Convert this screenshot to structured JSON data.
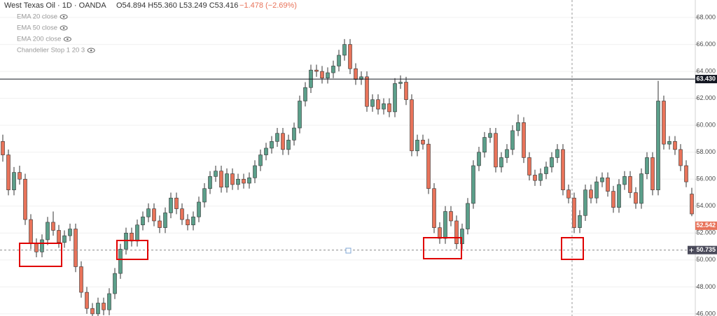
{
  "chart_data": {
    "type": "candlestick",
    "symbol": "West Texas Oil · 1D · OANDA",
    "ohlc_readout": "O54.894 H55.360 L53.249 C53.416",
    "change": "−1.478 (−2.69%)",
    "indicators": [
      "EMA 20 close",
      "EMA 50 close",
      "EMA 200 close",
      "Chandelier Stop 1 20 3"
    ],
    "up_color": "#5b9f8a",
    "down_color": "#e8735a",
    "ylim": [
      45.84,
      69.3
    ],
    "yticks": [
      {
        "value": 46,
        "label": "46.000"
      },
      {
        "value": 48,
        "label": "48.000"
      },
      {
        "value": 50,
        "label": "50.000"
      },
      {
        "value": 52,
        "label": "52.000"
      },
      {
        "value": 54,
        "label": "54.000"
      },
      {
        "value": 56,
        "label": "56.000"
      },
      {
        "value": 58,
        "label": "58.000"
      },
      {
        "value": 60,
        "label": "60.000"
      },
      {
        "value": 62,
        "label": "62.000"
      },
      {
        "value": 64,
        "label": "64.000"
      },
      {
        "value": 66,
        "label": "66.000"
      },
      {
        "value": 68,
        "label": "68.000"
      }
    ],
    "grid": true,
    "price_labels": [
      {
        "value": 63.43,
        "label": "63.430",
        "color": "#131722",
        "style": "solid"
      },
      {
        "value": 52.542,
        "label": "52.542",
        "color": "#e8735a",
        "style": "none"
      },
      {
        "value": 50.735,
        "label": "50.735",
        "color": "#4a4a5a",
        "style": "dashed"
      }
    ],
    "ohlc": [
      [
        58.8,
        59.3,
        57.3,
        57.8
      ],
      [
        57.8,
        58.2,
        54.8,
        55.2
      ],
      [
        55.2,
        56.9,
        54.8,
        56.5
      ],
      [
        56.5,
        57.0,
        55.6,
        56.0
      ],
      [
        56.0,
        56.4,
        52.6,
        53.0
      ],
      [
        53.0,
        53.4,
        50.8,
        51.2
      ],
      [
        51.2,
        51.6,
        50.2,
        50.6
      ],
      [
        50.6,
        51.9,
        50.2,
        51.5
      ],
      [
        51.5,
        53.2,
        51.1,
        52.8
      ],
      [
        52.8,
        53.6,
        51.8,
        52.2
      ],
      [
        52.2,
        52.6,
        50.9,
        51.3
      ],
      [
        51.3,
        52.2,
        50.9,
        51.8
      ],
      [
        51.8,
        52.7,
        51.4,
        52.3
      ],
      [
        52.3,
        52.7,
        49.1,
        49.5
      ],
      [
        49.5,
        49.9,
        47.2,
        47.6
      ],
      [
        47.6,
        48.0,
        46.0,
        46.4
      ],
      [
        46.4,
        46.8,
        45.6,
        46.0
      ],
      [
        46.0,
        47.2,
        45.6,
        46.8
      ],
      [
        46.8,
        47.2,
        45.9,
        46.3
      ],
      [
        46.3,
        47.9,
        45.9,
        47.5
      ],
      [
        47.5,
        49.4,
        47.1,
        49.0
      ],
      [
        49.0,
        51.2,
        48.6,
        50.8
      ],
      [
        50.8,
        52.4,
        50.4,
        52.0
      ],
      [
        52.0,
        52.4,
        51.0,
        51.4
      ],
      [
        51.4,
        53.0,
        51.0,
        52.6
      ],
      [
        52.6,
        53.6,
        52.2,
        53.2
      ],
      [
        53.2,
        54.2,
        52.8,
        53.8
      ],
      [
        53.8,
        54.2,
        52.5,
        52.9
      ],
      [
        52.9,
        53.3,
        52.0,
        52.4
      ],
      [
        52.4,
        53.9,
        52.0,
        53.5
      ],
      [
        53.5,
        55.0,
        53.1,
        54.6
      ],
      [
        54.6,
        55.0,
        53.4,
        53.8
      ],
      [
        53.8,
        54.2,
        52.6,
        53.0
      ],
      [
        53.0,
        53.4,
        52.2,
        52.6
      ],
      [
        52.6,
        53.6,
        52.2,
        53.2
      ],
      [
        53.2,
        54.7,
        52.8,
        54.3
      ],
      [
        54.3,
        55.7,
        53.9,
        55.3
      ],
      [
        55.3,
        56.6,
        54.9,
        56.2
      ],
      [
        56.2,
        57.0,
        55.8,
        56.6
      ],
      [
        56.6,
        57.0,
        55.0,
        55.4
      ],
      [
        55.4,
        56.8,
        55.0,
        56.4
      ],
      [
        56.4,
        56.8,
        55.2,
        55.6
      ],
      [
        55.6,
        56.4,
        55.2,
        56.0
      ],
      [
        56.0,
        56.4,
        55.3,
        55.7
      ],
      [
        55.7,
        56.5,
        55.3,
        56.1
      ],
      [
        56.1,
        57.4,
        55.7,
        57.0
      ],
      [
        57.0,
        58.2,
        56.6,
        57.8
      ],
      [
        57.8,
        58.7,
        57.4,
        58.3
      ],
      [
        58.3,
        59.2,
        57.9,
        58.8
      ],
      [
        58.8,
        59.8,
        58.4,
        59.4
      ],
      [
        59.4,
        59.8,
        57.8,
        58.2
      ],
      [
        58.2,
        59.3,
        57.8,
        58.9
      ],
      [
        58.9,
        60.2,
        58.5,
        59.8
      ],
      [
        59.8,
        62.2,
        59.4,
        61.8
      ],
      [
        61.8,
        63.2,
        61.4,
        62.8
      ],
      [
        62.8,
        64.5,
        62.4,
        64.1
      ],
      [
        64.1,
        64.5,
        63.6,
        64.0
      ],
      [
        64.0,
        64.4,
        63.1,
        63.5
      ],
      [
        63.5,
        64.3,
        63.1,
        63.9
      ],
      [
        63.9,
        64.8,
        63.5,
        64.4
      ],
      [
        64.4,
        65.6,
        64.0,
        65.2
      ],
      [
        65.2,
        66.4,
        64.8,
        66.0
      ],
      [
        66.0,
        66.4,
        63.8,
        64.2
      ],
      [
        64.2,
        64.6,
        63.0,
        63.4
      ],
      [
        63.4,
        64.0,
        63.0,
        63.6
      ],
      [
        63.6,
        64.0,
        61.0,
        61.4
      ],
      [
        61.4,
        62.3,
        61.0,
        61.9
      ],
      [
        61.9,
        62.3,
        60.8,
        61.2
      ],
      [
        61.2,
        62.0,
        60.8,
        61.6
      ],
      [
        61.6,
        62.0,
        60.6,
        61.0
      ],
      [
        61.0,
        63.5,
        60.6,
        63.1
      ],
      [
        63.1,
        63.7,
        62.7,
        63.2
      ],
      [
        63.2,
        63.6,
        61.5,
        61.9
      ],
      [
        61.9,
        62.3,
        57.7,
        58.1
      ],
      [
        58.1,
        59.3,
        57.7,
        58.9
      ],
      [
        58.9,
        59.3,
        58.2,
        58.6
      ],
      [
        58.6,
        59.0,
        54.9,
        55.3
      ],
      [
        55.3,
        55.7,
        52.0,
        52.4
      ],
      [
        52.4,
        52.8,
        51.2,
        51.6
      ],
      [
        51.6,
        54.0,
        51.2,
        53.6
      ],
      [
        53.6,
        54.0,
        52.5,
        52.9
      ],
      [
        52.9,
        53.3,
        50.8,
        51.2
      ],
      [
        51.2,
        52.7,
        50.8,
        52.3
      ],
      [
        52.3,
        54.6,
        51.9,
        54.2
      ],
      [
        54.2,
        57.4,
        53.8,
        57.0
      ],
      [
        57.0,
        58.4,
        56.6,
        58.0
      ],
      [
        58.0,
        59.5,
        57.6,
        59.1
      ],
      [
        59.1,
        59.8,
        58.7,
        59.4
      ],
      [
        59.4,
        59.8,
        56.5,
        56.9
      ],
      [
        56.9,
        58.0,
        56.5,
        57.6
      ],
      [
        57.6,
        58.6,
        57.2,
        58.2
      ],
      [
        58.2,
        60.0,
        57.8,
        59.6
      ],
      [
        59.6,
        60.8,
        59.2,
        60.2
      ],
      [
        60.2,
        60.6,
        57.2,
        57.6
      ],
      [
        57.6,
        58.0,
        55.9,
        56.3
      ],
      [
        56.3,
        56.7,
        55.5,
        55.9
      ],
      [
        55.9,
        56.8,
        55.5,
        56.4
      ],
      [
        56.4,
        57.3,
        56.0,
        56.9
      ],
      [
        56.9,
        58.0,
        56.5,
        57.6
      ],
      [
        57.6,
        58.6,
        57.2,
        58.2
      ],
      [
        58.2,
        58.6,
        54.8,
        55.2
      ],
      [
        55.2,
        55.6,
        54.2,
        54.6
      ],
      [
        54.6,
        55.0,
        52.0,
        52.4
      ],
      [
        52.4,
        53.7,
        52.0,
        53.3
      ],
      [
        53.3,
        55.6,
        52.9,
        55.2
      ],
      [
        55.2,
        55.6,
        54.2,
        54.6
      ],
      [
        54.6,
        56.2,
        54.2,
        55.8
      ],
      [
        55.8,
        56.5,
        55.4,
        56.1
      ],
      [
        56.1,
        56.5,
        54.7,
        55.1
      ],
      [
        55.1,
        55.5,
        53.5,
        53.9
      ],
      [
        53.9,
        56.0,
        53.5,
        55.6
      ],
      [
        55.6,
        56.6,
        55.2,
        56.2
      ],
      [
        56.2,
        56.6,
        54.6,
        55.0
      ],
      [
        55.0,
        55.4,
        53.8,
        54.2
      ],
      [
        54.2,
        56.8,
        53.8,
        56.4
      ],
      [
        56.4,
        58.0,
        56.0,
        57.6
      ],
      [
        57.6,
        58.0,
        54.8,
        55.2
      ],
      [
        55.2,
        63.3,
        54.8,
        61.8
      ],
      [
        61.8,
        62.2,
        58.2,
        58.6
      ],
      [
        58.6,
        59.2,
        58.2,
        58.8
      ],
      [
        58.8,
        59.2,
        57.8,
        58.2
      ],
      [
        58.2,
        58.6,
        56.6,
        57.0
      ],
      [
        57.0,
        57.4,
        55.4,
        55.8
      ],
      [
        54.894,
        55.36,
        53.249,
        53.416
      ]
    ]
  }
}
